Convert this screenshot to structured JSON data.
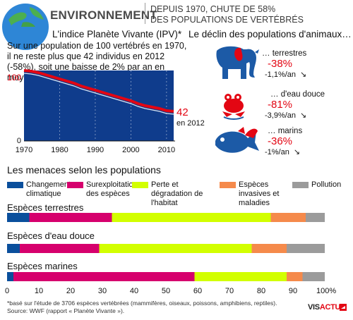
{
  "header": {
    "title": "ENVIRONNEMENT",
    "subtitle_line1": "DEPUIS 1970, CHUTE DE 58%",
    "subtitle_line2": "DES POPULATIONS DE VERTÉBRÉS"
  },
  "ipv": {
    "title": "L'indice Planète Vivante (IPV)*",
    "description": "Sur une population de 100 vertébrés en 1970, il ne reste plus que 42 individus en 2012 (-58%), soit une baisse de 2% par an en moyenne.",
    "end_value": "42",
    "end_label": "en 2012"
  },
  "decline": {
    "title": "Le déclin des populations d'animaux…",
    "groups": [
      {
        "label": "… terrestres",
        "pct": "-38%",
        "rate": "-1,1%/an",
        "icon": "elephant-icon"
      },
      {
        "label": "… d'eau douce",
        "pct": "-81%",
        "rate": "-3,9%/an",
        "icon": "frog-icon"
      },
      {
        "label": "… marins",
        "pct": "-36%",
        "rate": "-1%/an",
        "icon": "fish-icon"
      }
    ]
  },
  "threats": {
    "title": "Les menaces selon les populations"
  },
  "footnote": {
    "line1": "*basé sur l'étude de 3706 espèces vertébrées (mammifères, oiseaux, poissons, amphibiens, reptiles).",
    "line2": "Source: WWF (rapport « Planète Vivante »)."
  },
  "logo": {
    "part1": "VIS",
    "part2": "ACTU"
  },
  "colors": {
    "accent_red": "#e30613",
    "line_bg": "#0f3c8c",
    "climate": "#0a4f9c",
    "overexploitation": "#d6006d",
    "habitat": "#d2ff00",
    "invasive": "#f58a4b",
    "pollution": "#9b9b9b",
    "animal_blue": "#1c5aa6"
  },
  "chart_data": [
    {
      "type": "area",
      "title": "L'indice Planète Vivante (IPV)*",
      "x": [
        1970,
        1972,
        1974,
        1976,
        1978,
        1980,
        1982,
        1984,
        1986,
        1988,
        1990,
        1992,
        1994,
        1996,
        1998,
        2000,
        2002,
        2004,
        2006,
        2008,
        2010,
        2012
      ],
      "y": [
        100,
        99,
        97,
        94,
        91,
        88,
        85,
        82,
        78,
        75,
        72,
        69,
        66,
        63,
        60,
        57,
        53,
        50,
        48,
        46,
        43,
        42
      ],
      "xticks": [
        1970,
        1980,
        1990,
        2000,
        2010
      ],
      "yticks": [
        0,
        100
      ],
      "xlim": [
        1970,
        2012
      ],
      "ylim": [
        0,
        100
      ],
      "annotations": [
        "100",
        "42",
        "en 2012"
      ]
    },
    {
      "type": "bar",
      "orientation": "horizontal",
      "stacked": true,
      "title": "Les menaces selon les populations",
      "categories": [
        "Espèces terrestres",
        "Espèces d'eau douce",
        "Espèces marines"
      ],
      "series": [
        {
          "name": "Changement climatique",
          "values": [
            7,
            4,
            2
          ]
        },
        {
          "name": "Surexploitation des espèces",
          "values": [
            26,
            25,
            57
          ]
        },
        {
          "name": "Perte et dégradation de l'habitat",
          "values": [
            50,
            48,
            29
          ]
        },
        {
          "name": "Espèces invasives et maladies",
          "values": [
            11,
            11,
            5
          ]
        },
        {
          "name": "Pollution",
          "values": [
            6,
            12,
            7
          ]
        }
      ],
      "xticks": [
        "0",
        "10",
        "20",
        "30",
        "40",
        "50",
        "60",
        "70",
        "80",
        "90",
        "100%"
      ],
      "xlim": [
        0,
        100
      ]
    }
  ]
}
